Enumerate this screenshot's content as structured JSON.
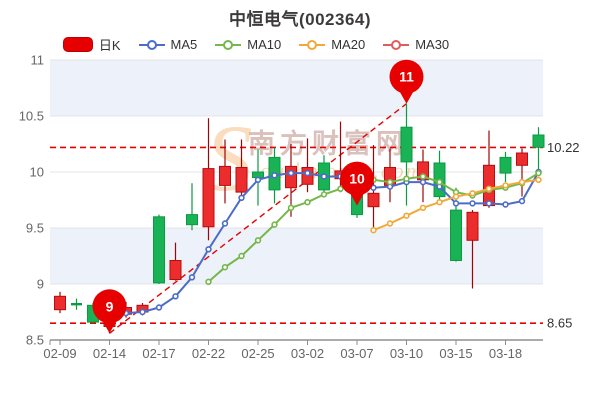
{
  "title": "中恒电气(002364)",
  "legend": {
    "kline": "日K",
    "ma5": "MA5",
    "ma10": "MA10",
    "ma20": "MA20",
    "ma30": "MA30"
  },
  "watermark": {
    "initial": "S",
    "cn": "南方财富网",
    "en": "outhmoney.com"
  },
  "colors": {
    "kline": "#e60000",
    "ma5": "#4b6cc8",
    "ma10": "#74b74a",
    "ma20": "#f2a93b",
    "ma30": "#e05c5c",
    "annotation": "#e60000",
    "band": "#edf1f9",
    "up_body": "#ec2d2d",
    "up_edge": "#b80d0d",
    "up_wick": "#9d0606",
    "down_body": "#19b254",
    "down_edge": "#0b9b43",
    "down_wick": "#0b9b43"
  },
  "annotations": {
    "upper_line": {
      "value": 10.22,
      "label": "10.22"
    },
    "lower_line": {
      "value": 8.65,
      "label": "8.65"
    },
    "balloons": [
      {
        "label": "9",
        "date": "02-14",
        "value": 8.56
      },
      {
        "label": "10",
        "date": "03-07",
        "value": 9.7
      },
      {
        "label": "11",
        "date": "03-10",
        "value": 10.61
      }
    ],
    "trendline": {
      "from": {
        "date": "02-14",
        "value": 8.56
      },
      "to": {
        "date": "03-10",
        "value": 10.61
      }
    }
  },
  "chart_data": {
    "type": "candlestick",
    "ylim": [
      8.5,
      11
    ],
    "y_axis": {
      "ticks": [
        8.5,
        9,
        9.5,
        10,
        10.5,
        11
      ],
      "labels": [
        "8.5",
        "9",
        "9.5",
        "10",
        "10.5",
        "11"
      ]
    },
    "shaded_bands": [
      [
        10.5,
        11
      ],
      [
        9,
        9.5
      ]
    ],
    "x_axis": {
      "labels": [
        "02-09",
        "02-14",
        "02-17",
        "02-22",
        "02-25",
        "03-02",
        "03-07",
        "03-10",
        "03-15",
        "03-18"
      ],
      "indices": [
        0,
        3,
        6,
        9,
        12,
        15,
        18,
        21,
        24,
        27
      ]
    },
    "dates": [
      "02-09",
      "02-10",
      "02-11",
      "02-14",
      "02-15",
      "02-16",
      "02-17",
      "02-18",
      "02-21",
      "02-22",
      "02-23",
      "02-24",
      "02-25",
      "02-28",
      "03-01",
      "03-02",
      "03-03",
      "03-04",
      "03-07",
      "03-08",
      "03-09",
      "03-10",
      "03-11",
      "03-14",
      "03-15",
      "03-16",
      "03-17",
      "03-18",
      "03-21",
      "03-22"
    ],
    "candles_format": [
      "open",
      "high",
      "low",
      "close"
    ],
    "candles": [
      [
        8.77,
        8.93,
        8.74,
        8.89
      ],
      [
        8.82,
        8.87,
        8.77,
        8.82
      ],
      [
        8.81,
        8.83,
        8.65,
        8.66
      ],
      [
        8.62,
        8.7,
        8.56,
        8.68
      ],
      [
        8.73,
        8.84,
        8.7,
        8.79
      ],
      [
        8.75,
        8.83,
        8.72,
        8.81
      ],
      [
        9.6,
        9.62,
        9.0,
        9.01
      ],
      [
        9.04,
        9.37,
        9.03,
        9.21
      ],
      [
        9.62,
        9.9,
        9.48,
        9.53
      ],
      [
        9.51,
        10.48,
        9.39,
        10.03
      ],
      [
        9.88,
        10.29,
        9.72,
        10.05
      ],
      [
        9.82,
        10.29,
        9.75,
        10.04
      ],
      [
        10.0,
        10.2,
        9.7,
        9.95
      ],
      [
        10.13,
        10.22,
        9.72,
        9.84
      ],
      [
        9.86,
        10.25,
        9.6,
        10.05
      ],
      [
        9.89,
        10.3,
        9.82,
        10.04
      ],
      [
        10.08,
        10.15,
        9.81,
        9.84
      ],
      [
        9.94,
        10.45,
        9.82,
        10.01
      ],
      [
        9.9,
        10.0,
        9.59,
        9.62
      ],
      [
        9.69,
        10.24,
        9.46,
        9.81
      ],
      [
        9.88,
        10.21,
        9.73,
        10.04
      ],
      [
        10.4,
        10.61,
        9.7,
        10.09
      ],
      [
        9.93,
        10.2,
        9.73,
        10.09
      ],
      [
        10.08,
        10.19,
        9.75,
        9.78
      ],
      [
        9.66,
        9.86,
        9.2,
        9.21
      ],
      [
        9.39,
        9.66,
        8.96,
        9.64
      ],
      [
        9.7,
        10.37,
        9.68,
        10.06
      ],
      [
        10.13,
        10.18,
        9.91,
        9.99
      ],
      [
        10.06,
        10.21,
        9.78,
        10.17
      ],
      [
        10.33,
        10.4,
        10.0,
        10.22
      ]
    ],
    "series": [
      {
        "name": "MA5",
        "color_key": "ma5",
        "start_date": "02-15",
        "values": [
          8.74,
          8.75,
          8.79,
          8.89,
          9.06,
          9.31,
          9.54,
          9.77,
          9.93,
          9.97,
          9.99,
          9.99,
          9.96,
          9.96,
          9.9,
          9.86,
          9.87,
          9.91,
          9.91,
          9.87,
          9.72,
          9.72,
          9.72,
          9.71,
          9.74,
          10.0
        ]
      },
      {
        "name": "MA10",
        "color_key": "ma10",
        "start_date": "02-22",
        "values": [
          9.02,
          9.15,
          9.25,
          9.39,
          9.53,
          9.68,
          9.73,
          9.8,
          9.85,
          9.9,
          9.93,
          9.91,
          9.94,
          9.96,
          9.91,
          9.82,
          9.79,
          9.84,
          9.86,
          9.9,
          9.99
        ]
      },
      {
        "name": "MA20",
        "color_key": "ma20",
        "start_date": "03-08",
        "values": [
          9.48,
          9.54,
          9.61,
          9.68,
          9.73,
          9.78,
          9.81,
          9.85,
          9.88,
          9.91,
          9.93
        ]
      },
      {
        "name": "MA30",
        "color_key": "ma30",
        "start_date": null,
        "values": []
      }
    ]
  }
}
